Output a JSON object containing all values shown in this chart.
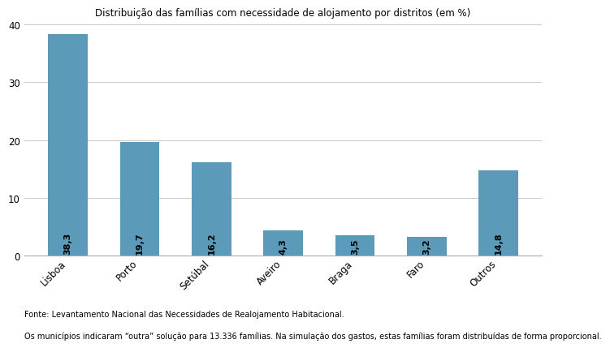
{
  "title": "Distribuição das famílias com necessidade de alojamento por distritos (em %)",
  "categories": [
    "Lisboa",
    "Porto",
    "Setúbal",
    "Aveiro",
    "Braga",
    "Faro",
    "Outros"
  ],
  "values": [
    38.3,
    19.7,
    16.2,
    4.3,
    3.5,
    3.2,
    14.8
  ],
  "value_labels": [
    "38,3",
    "19,7",
    "16,2",
    "4,3",
    "3,5",
    "3,2",
    "14,8"
  ],
  "bar_color": "#5b9ab8",
  "ylim": [
    0,
    40
  ],
  "yticks": [
    0,
    10,
    20,
    30,
    40
  ],
  "background_color": "#ffffff",
  "title_fontsize": 8.5,
  "label_fontsize": 8.0,
  "tick_fontsize": 8.5,
  "note_line1": "Fonte: Levantamento Nacional das Necessidades de Realojamento Habitacional.",
  "note_line2": "Os municípios indicaram “outra” solução para 13.336 famílias. Na simulação dos gastos, estas famílias foram distribuídas de forma proporcional.",
  "note_fontsize": 7.0,
  "grid_color": "#cccccc",
  "spine_color": "#aaaaaa"
}
